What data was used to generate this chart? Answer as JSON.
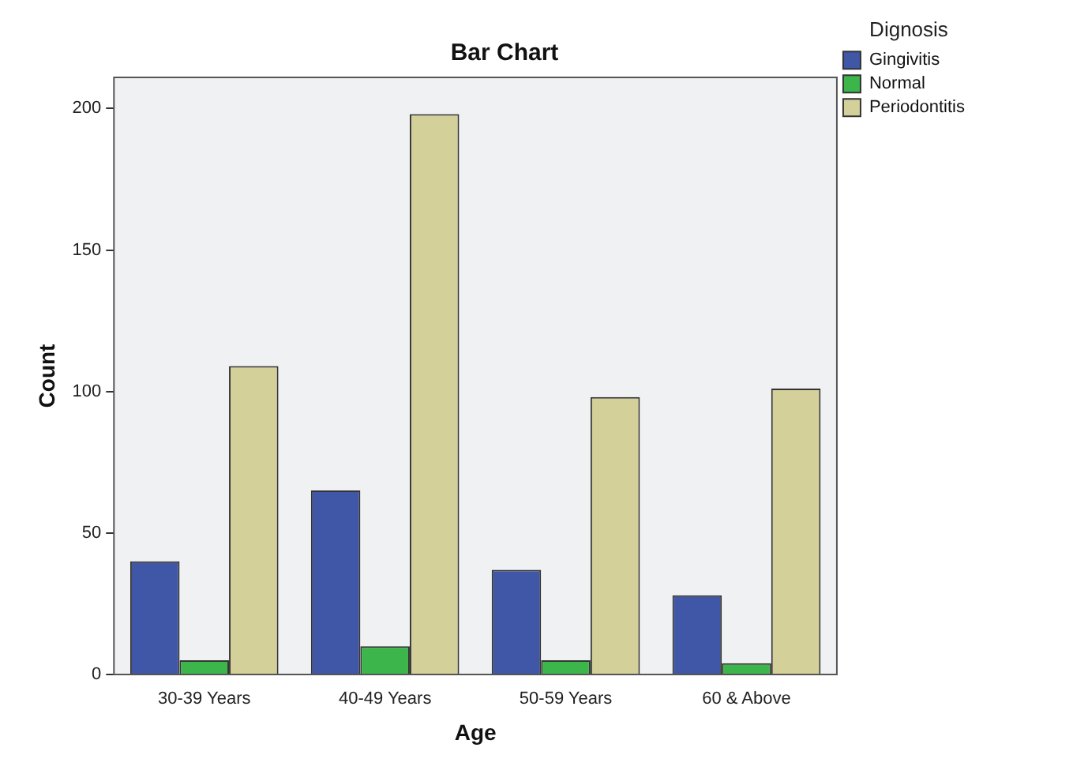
{
  "chart_data": {
    "type": "bar",
    "title": "Bar Chart",
    "xlabel": "Age",
    "ylabel": "Count",
    "legend_title": "Dignosis",
    "categories": [
      "30-39 Years",
      "40-49 Years",
      "50-59 Years",
      "60 & Above"
    ],
    "series": [
      {
        "name": "Gingivitis",
        "color": "#3f57a6",
        "values": [
          40,
          65,
          37,
          28
        ]
      },
      {
        "name": "Normal",
        "color": "#3cb54a",
        "values": [
          5,
          10,
          5,
          4
        ]
      },
      {
        "name": "Periodontitis",
        "color": "#d4d09a",
        "values": [
          109,
          198,
          98,
          101
        ]
      }
    ],
    "ylim": [
      0,
      211
    ],
    "yticks": [
      0,
      50,
      100,
      150,
      200
    ],
    "grid": false,
    "legend": "top right"
  }
}
